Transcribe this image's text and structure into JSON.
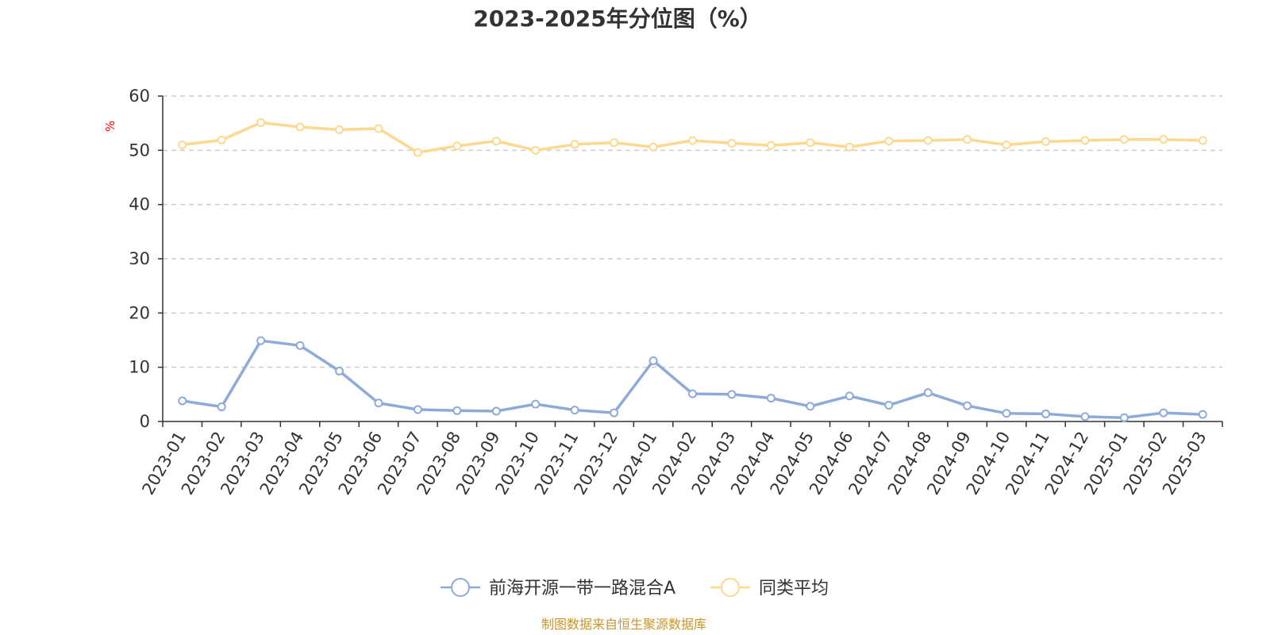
{
  "chart_data": {
    "type": "line",
    "title": "2023-2025年分位图（%）",
    "ylabel": "%",
    "ylim": [
      0,
      60
    ],
    "yticks": [
      0,
      10,
      20,
      30,
      40,
      50,
      60
    ],
    "grid": true,
    "categories": [
      "2023-01",
      "2023-02",
      "2023-03",
      "2023-04",
      "2023-05",
      "2023-06",
      "2023-07",
      "2023-08",
      "2023-09",
      "2023-10",
      "2023-11",
      "2023-12",
      "2024-01",
      "2024-02",
      "2024-03",
      "2024-04",
      "2024-05",
      "2024-06",
      "2024-07",
      "2024-08",
      "2024-09",
      "2024-10",
      "2024-11",
      "2024-12",
      "2025-01",
      "2025-02",
      "2025-03"
    ],
    "series": [
      {
        "name": "前海开源一带一路混合A",
        "color": "#8eabd8",
        "values": [
          3.8,
          2.7,
          14.9,
          14.0,
          9.3,
          3.4,
          2.2,
          2.0,
          1.9,
          3.2,
          2.1,
          1.6,
          11.2,
          5.1,
          5.0,
          4.3,
          2.8,
          4.7,
          3.0,
          5.3,
          2.9,
          1.5,
          1.4,
          0.9,
          0.7,
          1.6,
          1.3
        ]
      },
      {
        "name": "同类平均",
        "color": "#fcd98f",
        "values": [
          51.0,
          51.9,
          55.1,
          54.3,
          53.8,
          54.0,
          49.6,
          50.8,
          51.7,
          50.0,
          51.1,
          51.4,
          50.6,
          51.8,
          51.3,
          50.9,
          51.4,
          50.6,
          51.7,
          51.8,
          52.0,
          51.0,
          51.6,
          51.8,
          52.0,
          52.0,
          51.8
        ]
      }
    ],
    "legend_position": "bottom-center",
    "source": "制图数据来自恒生聚源数据库"
  }
}
